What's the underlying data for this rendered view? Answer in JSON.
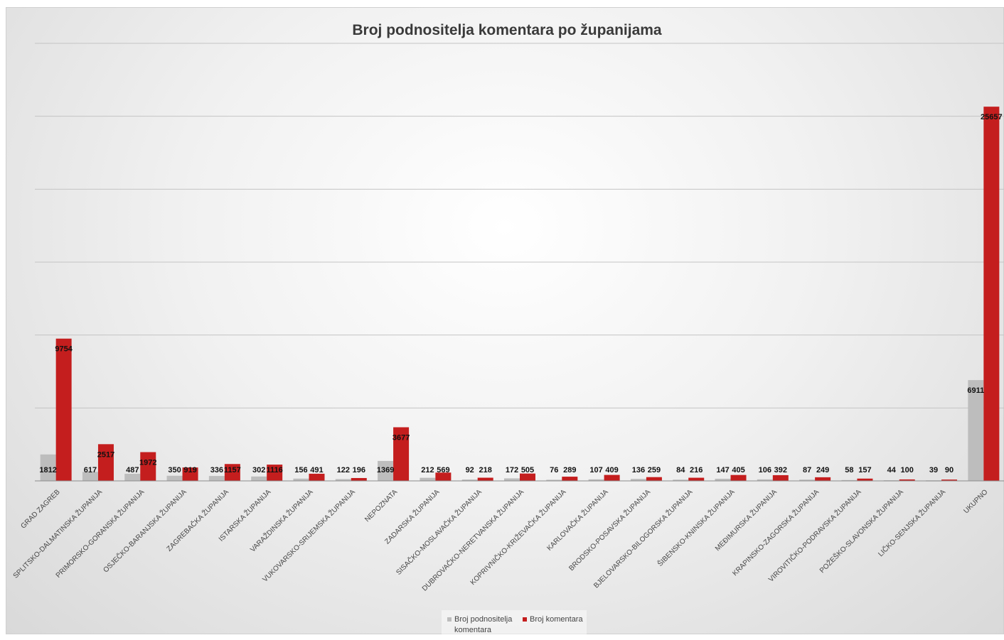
{
  "chart_data": {
    "type": "bar",
    "title": "Broj podnositelja komentara po županijama",
    "xlabel": "",
    "ylabel": "",
    "ylim": [
      0,
      30000
    ],
    "grid": true,
    "legend_position": "bottom",
    "categories": [
      "GRAD ZAGREB",
      "SPLITSKO-DALMATINSKA ŽUPANIJA",
      "PRIMORSKO-GORANSKA ŽUPANIJA",
      "OSJEČKO-BARANJSKA ŽUPANIJA",
      "ZAGREBAČKA ŽUPANIJA",
      "ISTARSKA ŽUPANIJA",
      "VARAŽDINSKA ŽUPANIJA",
      "VUKOVARSKO-SRIJEMSKA ŽUPANIJA",
      "NEPOZNATA",
      "ZADARSKA ŽUPANIJA",
      "SISAČKO-MOSLAVAČKA ŽUPANIJA",
      "DUBROVAČKO-NERETVANSKA ŽUPANIJA",
      "KOPRIVNIČKO-KRIŽEVAČKA ŽUPANIJA",
      "KARLOVAČKA ŽUPANIJA",
      "BRODSKO-POSAVSKA ŽUPANIJA",
      "BJELOVARSKO-BILOGORSKA ŽUPANIJA",
      "ŠIBENSKO-KNINSKA ŽUPANIJA",
      "MEĐIMURSKA ŽUPANIJA",
      "KRAPINSKO-ZAGORSKA ŽUPANIJA",
      "VIROVITIČKO-PODRAVSKA ŽUPANIJA",
      "POŽEŠKO-SLAVONSKA ŽUPANIJA",
      "LIČKO-SENJSKA ŽUPANIJA",
      "UKUPNO"
    ],
    "series": [
      {
        "name": "Broj podnositelja komentara",
        "color": "#bdbdbd",
        "values": [
          1812,
          617,
          487,
          350,
          336,
          302,
          156,
          122,
          1369,
          212,
          92,
          172,
          76,
          107,
          136,
          84,
          147,
          106,
          87,
          58,
          44,
          39,
          6911
        ]
      },
      {
        "name": "Broj komentara",
        "color": "#c41e1e",
        "values": [
          9754,
          2517,
          1972,
          919,
          1157,
          1116,
          491,
          196,
          3677,
          569,
          218,
          505,
          289,
          409,
          259,
          216,
          405,
          392,
          249,
          157,
          100,
          90,
          25657
        ]
      }
    ]
  }
}
